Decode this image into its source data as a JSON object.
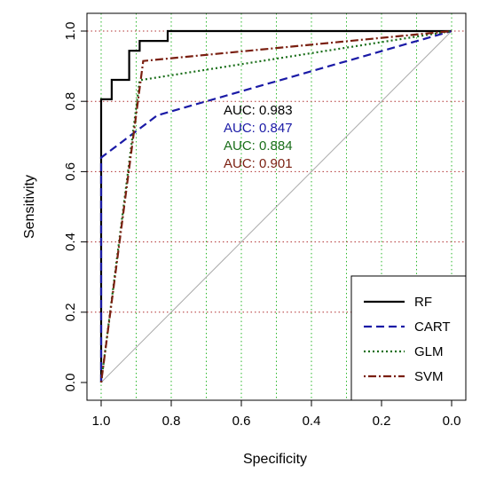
{
  "chart_data": {
    "type": "line",
    "title": "",
    "xlabel": "Specificity",
    "ylabel": "Sensitivity",
    "xlim": [
      1.0,
      0.0
    ],
    "ylim": [
      0.0,
      1.0
    ],
    "x_reversed": true,
    "x_ticks": [
      "1.0",
      "0.8",
      "0.6",
      "0.4",
      "0.2",
      "0.0"
    ],
    "y_ticks": [
      "0.0",
      "0.2",
      "0.4",
      "0.6",
      "0.8",
      "1.0"
    ],
    "x_tick_values": [
      1.0,
      0.8,
      0.6,
      0.4,
      0.2,
      0.0
    ],
    "y_tick_values": [
      0.0,
      0.2,
      0.4,
      0.6,
      0.8,
      1.0
    ],
    "grid_vertical": [
      1.0,
      0.9,
      0.8,
      0.7,
      0.6,
      0.5,
      0.4,
      0.3,
      0.2,
      0.1,
      0.0
    ],
    "grid_horizontal": [
      0.2,
      0.4,
      0.6,
      0.8,
      1.0
    ],
    "grid_vertical_color": "#2db82d",
    "grid_horizontal_color": "#b03030",
    "diagonal_color": "#aaaaaa",
    "legend_position": "bottom-right",
    "series": [
      {
        "name": "RF",
        "color": "#000000",
        "dash": "solid",
        "auc_label": "AUC: 0.983",
        "x": [
          1.0,
          1.0,
          0.97,
          0.97,
          0.96,
          0.96,
          0.92,
          0.92,
          0.89,
          0.89,
          0.81,
          0.81,
          0.0
        ],
        "y": [
          0.0,
          0.806,
          0.806,
          0.861,
          0.861,
          0.861,
          0.861,
          0.944,
          0.944,
          0.972,
          0.972,
          1.0,
          1.0
        ]
      },
      {
        "name": "CART",
        "color": "#1a1aa6",
        "dash": "dashed",
        "auc_label": "AUC: 0.847",
        "x": [
          1.0,
          1.0,
          0.84,
          0.0
        ],
        "y": [
          0.0,
          0.64,
          0.76,
          1.0
        ]
      },
      {
        "name": "GLM",
        "color": "#1a6e1a",
        "dash": "dotted",
        "auc_label": "AUC: 0.884",
        "x": [
          1.0,
          0.89,
          0.0
        ],
        "y": [
          0.0,
          0.86,
          1.0
        ]
      },
      {
        "name": "SVM",
        "color": "#7a1f10",
        "dash": "dotdash",
        "auc_label": "AUC: 0.901",
        "x": [
          1.0,
          0.88,
          0.0
        ],
        "y": [
          0.0,
          0.915,
          1.0
        ]
      }
    ]
  }
}
